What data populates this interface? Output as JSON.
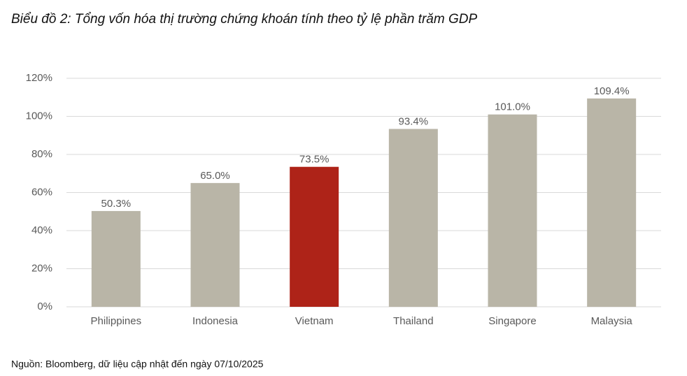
{
  "chart_data": {
    "type": "bar",
    "title": "Biểu đồ 2: Tổng vốn hóa thị trường chứng khoán tính theo tỷ lệ phần trăm GDP",
    "categories": [
      "Philippines",
      "Indonesia",
      "Vietnam",
      "Thailand",
      "Singapore",
      "Malaysia"
    ],
    "values": [
      50.3,
      65.0,
      73.5,
      93.4,
      101.0,
      109.4
    ],
    "value_labels": [
      "50.3%",
      "65.0%",
      "73.5%",
      "93.4%",
      "101.0%",
      "109.4%"
    ],
    "colors": [
      "#b9b5a7",
      "#b9b5a7",
      "#ae2318",
      "#b9b5a7",
      "#b9b5a7",
      "#b9b5a7"
    ],
    "ylim": [
      0,
      120
    ],
    "yticks": [
      {
        "value": 0,
        "label": "0%"
      },
      {
        "value": 20,
        "label": "20%"
      },
      {
        "value": 40,
        "label": "40%"
      },
      {
        "value": 60,
        "label": "60%"
      },
      {
        "value": 80,
        "label": "80%"
      },
      {
        "value": 100,
        "label": "100%"
      },
      {
        "value": 120,
        "label": "120%"
      }
    ],
    "grid": true,
    "source": "Nguồn: Bloomberg, dữ liệu cập nhật đến ngày 07/10/2025"
  }
}
